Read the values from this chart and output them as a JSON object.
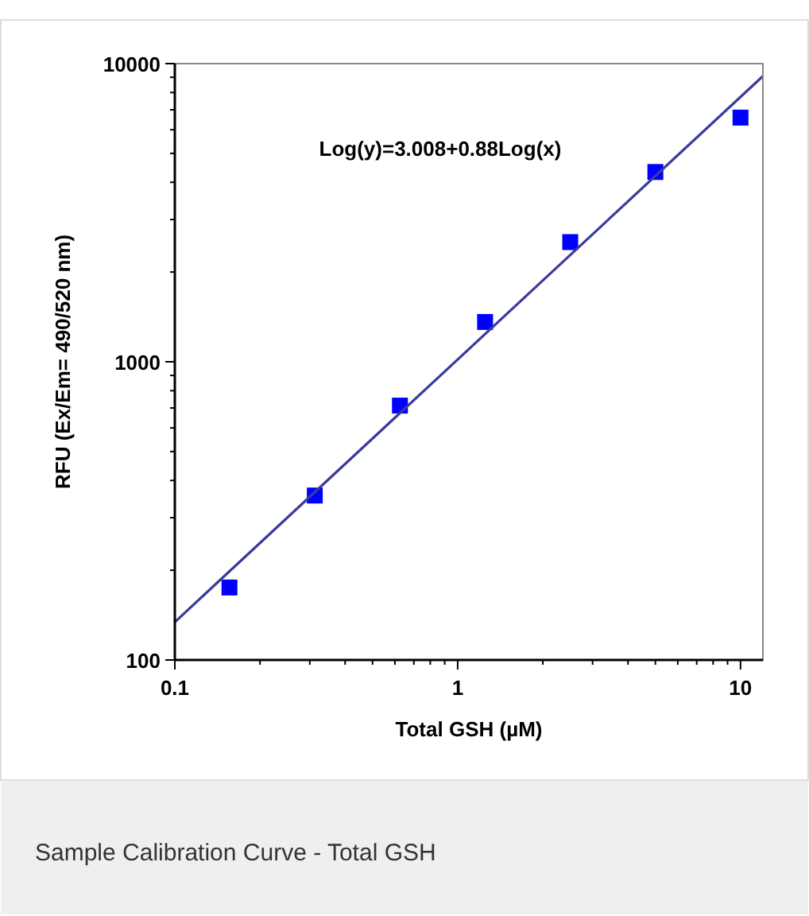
{
  "chart_data": {
    "type": "scatter",
    "xlabel": "Total GSH (µM)",
    "ylabel": "RFU (Ex/Em= 490/520 nm)",
    "log": "xy",
    "xlim": [
      0.1,
      12
    ],
    "ylim": [
      100,
      10000
    ],
    "xticks": [
      0.1,
      1,
      10
    ],
    "yticks": [
      100,
      1000,
      10000
    ],
    "grid": false,
    "series": [
      {
        "color": "#0000ff",
        "marker": "square",
        "x": [
          0.156,
          0.3125,
          0.625,
          1.25,
          2.5,
          5,
          10
        ],
        "values": [
          175,
          356,
          713,
          1360,
          2520,
          4330,
          6590
        ]
      },
      {
        "type": "line",
        "color": "#3a3a9c",
        "marker": "none",
        "line_style": "solid",
        "x": [
          0.1,
          12
        ],
        "values": [
          134,
          9080
        ]
      }
    ],
    "annotations": [
      "Log(y)=3.008+0.88Log(x)",
      "Sample Calibration Curve - Total GSH"
    ]
  }
}
